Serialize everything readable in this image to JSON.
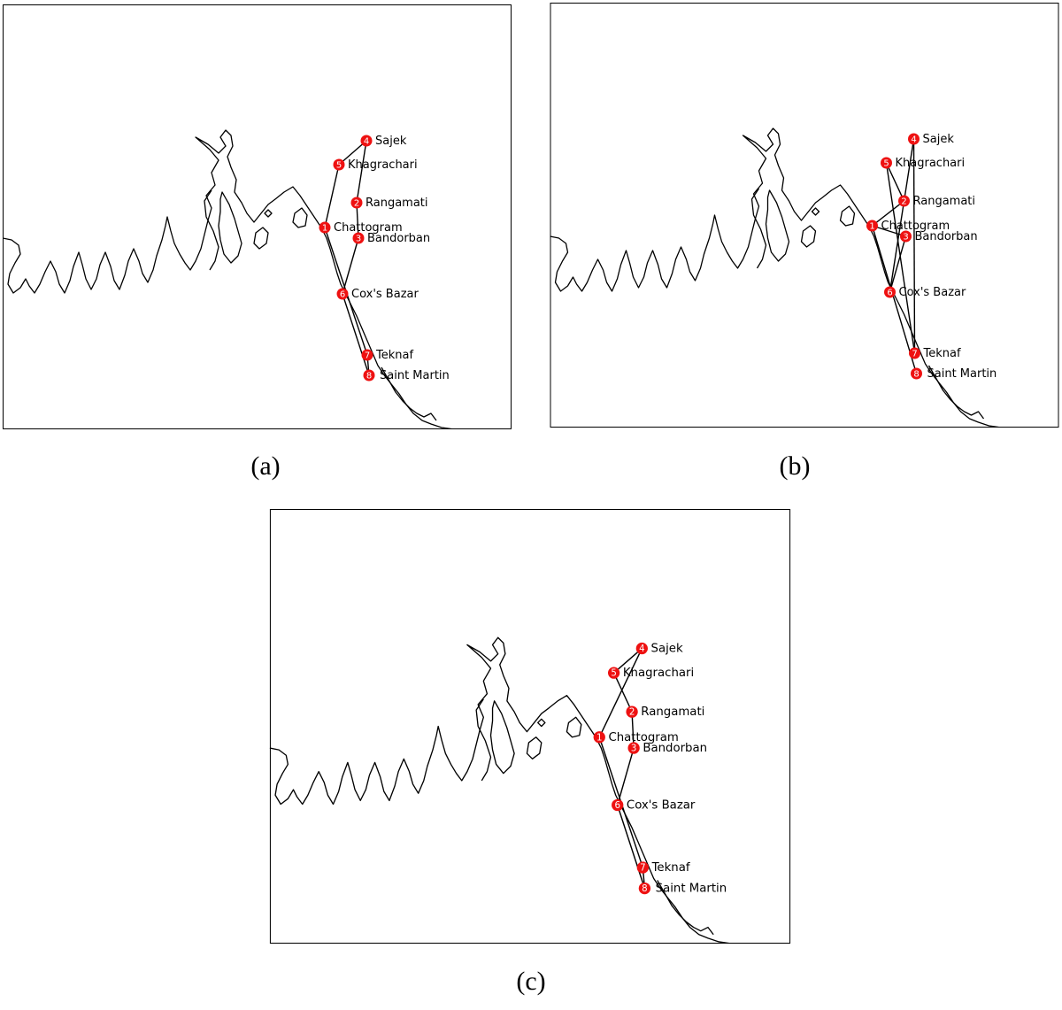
{
  "captions": {
    "a": "(a)",
    "b": "(b)",
    "c": "(c)"
  },
  "cities": [
    {
      "id": 1,
      "number": "1",
      "name": "Chattogram"
    },
    {
      "id": 2,
      "number": "2",
      "name": "Rangamati"
    },
    {
      "id": 3,
      "number": "3",
      "name": "Bandorban"
    },
    {
      "id": 4,
      "number": "4",
      "name": "Sajek"
    },
    {
      "id": 5,
      "number": "5",
      "name": "Khagrachari"
    },
    {
      "id": 6,
      "number": "6",
      "name": "Cox's Bazar"
    },
    {
      "id": 7,
      "number": "7",
      "name": "Teknaf"
    },
    {
      "id": 8,
      "number": "8",
      "name": "Saint Martin"
    }
  ],
  "routes": {
    "a": [
      [
        1,
        5
      ],
      [
        5,
        4
      ],
      [
        4,
        2
      ],
      [
        2,
        3
      ],
      [
        3,
        6
      ],
      [
        6,
        8
      ],
      [
        8,
        7
      ],
      [
        7,
        1
      ]
    ],
    "b": [
      [
        1,
        2
      ],
      [
        2,
        5
      ],
      [
        5,
        7
      ],
      [
        7,
        4
      ],
      [
        4,
        6
      ],
      [
        6,
        3
      ],
      [
        3,
        1
      ],
      [
        1,
        8
      ]
    ],
    "c": [
      [
        1,
        4
      ],
      [
        4,
        5
      ],
      [
        5,
        2
      ],
      [
        2,
        3
      ],
      [
        3,
        6
      ],
      [
        6,
        8
      ],
      [
        8,
        7
      ],
      [
        7,
        1
      ]
    ]
  },
  "colors": {
    "node": "#ee1111",
    "line": "#000000",
    "frame": "#000000"
  }
}
